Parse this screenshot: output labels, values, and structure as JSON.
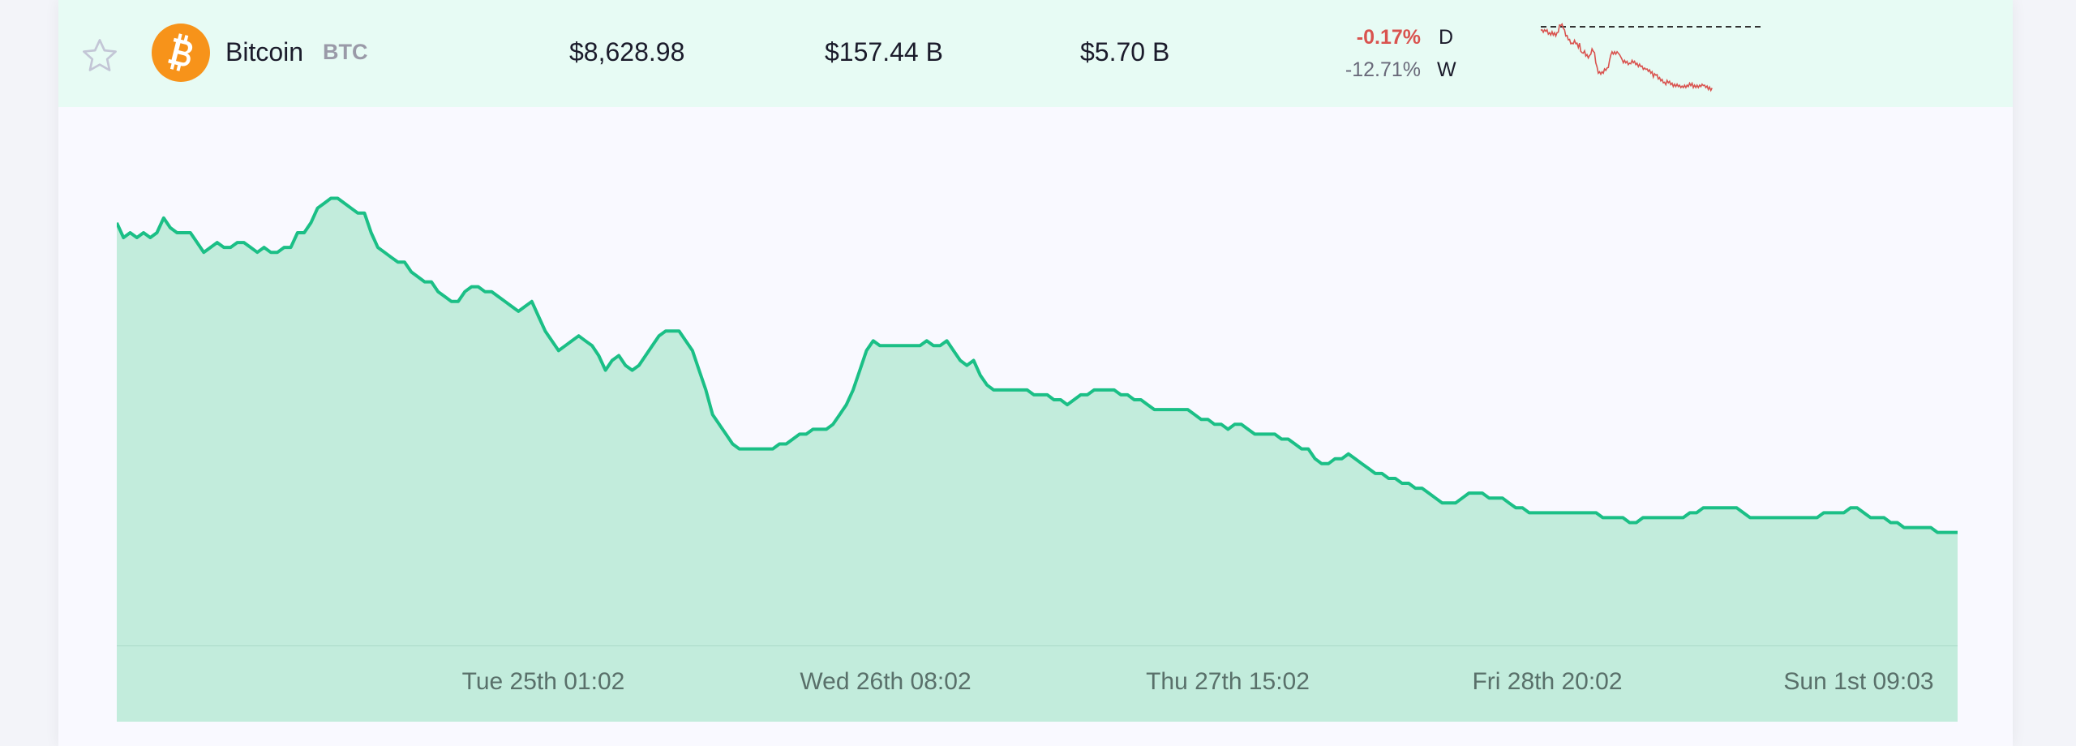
{
  "coin": {
    "name": "Bitcoin",
    "symbol": "BTC",
    "price": "$8,628.98",
    "market_cap": "$157.44 B",
    "volume": "$5.70 B",
    "change_day": "-0.17%",
    "change_day_label": "D",
    "change_week": "-12.71%",
    "change_week_label": "W",
    "icon": "bitcoin-icon",
    "star_icon": "star-outline-icon"
  },
  "colors": {
    "line": "#1bbf86",
    "fill": "#c2ecdc",
    "negative": "#d9534f",
    "row_bg": "#e7fbf4",
    "coin": "#f7931a"
  },
  "chart_data": {
    "type": "area",
    "x_tick_labels": [
      "Tue 25th 01:02",
      "Wed 26th 08:02",
      "Thu 27th 15:02",
      "Fri 28th 20:02",
      "Sun 1st 09:03"
    ],
    "y_relative": [
      86,
      83,
      84,
      83,
      84,
      83,
      84,
      87,
      85,
      84,
      84,
      84,
      82,
      80,
      81,
      82,
      81,
      81,
      82,
      82,
      81,
      80,
      81,
      80,
      80,
      81,
      81,
      84,
      84,
      86,
      89,
      90,
      91,
      91,
      90,
      89,
      88,
      88,
      84,
      81,
      80,
      79,
      78,
      78,
      76,
      75,
      74,
      74,
      72,
      71,
      70,
      70,
      72,
      73,
      73,
      72,
      72,
      71,
      70,
      69,
      68,
      69,
      70,
      67,
      64,
      62,
      60,
      61,
      62,
      63,
      62,
      61,
      59,
      56,
      58,
      59,
      57,
      56,
      57,
      59,
      61,
      63,
      64,
      64,
      64,
      62,
      60,
      56,
      52,
      47,
      45,
      43,
      41,
      40,
      40,
      40,
      40,
      40,
      40,
      41,
      41,
      42,
      43,
      43,
      44,
      44,
      44,
      45,
      47,
      49,
      52,
      56,
      60,
      62,
      61,
      61,
      61,
      61,
      61,
      61,
      61,
      62,
      61,
      61,
      62,
      60,
      58,
      57,
      58,
      55,
      53,
      52,
      52,
      52,
      52,
      52,
      52,
      51,
      51,
      51,
      50,
      50,
      49,
      50,
      51,
      51,
      52,
      52,
      52,
      52,
      51,
      51,
      50,
      50,
      49,
      48,
      48,
      48,
      48,
      48,
      48,
      47,
      46,
      46,
      45,
      45,
      44,
      45,
      45,
      44,
      43,
      43,
      43,
      43,
      42,
      42,
      41,
      40,
      40,
      38,
      37,
      37,
      38,
      38,
      39,
      38,
      37,
      36,
      35,
      35,
      34,
      34,
      33,
      33,
      32,
      32,
      31,
      30,
      29,
      29,
      29,
      30,
      31,
      31,
      31,
      30,
      30,
      30,
      29,
      28,
      28,
      27,
      27,
      27,
      27,
      27,
      27,
      27,
      27,
      27,
      27,
      27,
      26,
      26,
      26,
      26,
      25,
      25,
      26,
      26,
      26,
      26,
      26,
      26,
      26,
      27,
      27,
      28,
      28,
      28,
      28,
      28,
      28,
      27,
      26,
      26,
      26,
      26,
      26,
      26,
      26,
      26,
      26,
      26,
      26,
      27,
      27,
      27,
      27,
      28,
      28,
      27,
      26,
      26,
      26,
      25,
      25,
      24,
      24,
      24,
      24,
      24,
      23,
      23,
      23,
      23
    ]
  }
}
